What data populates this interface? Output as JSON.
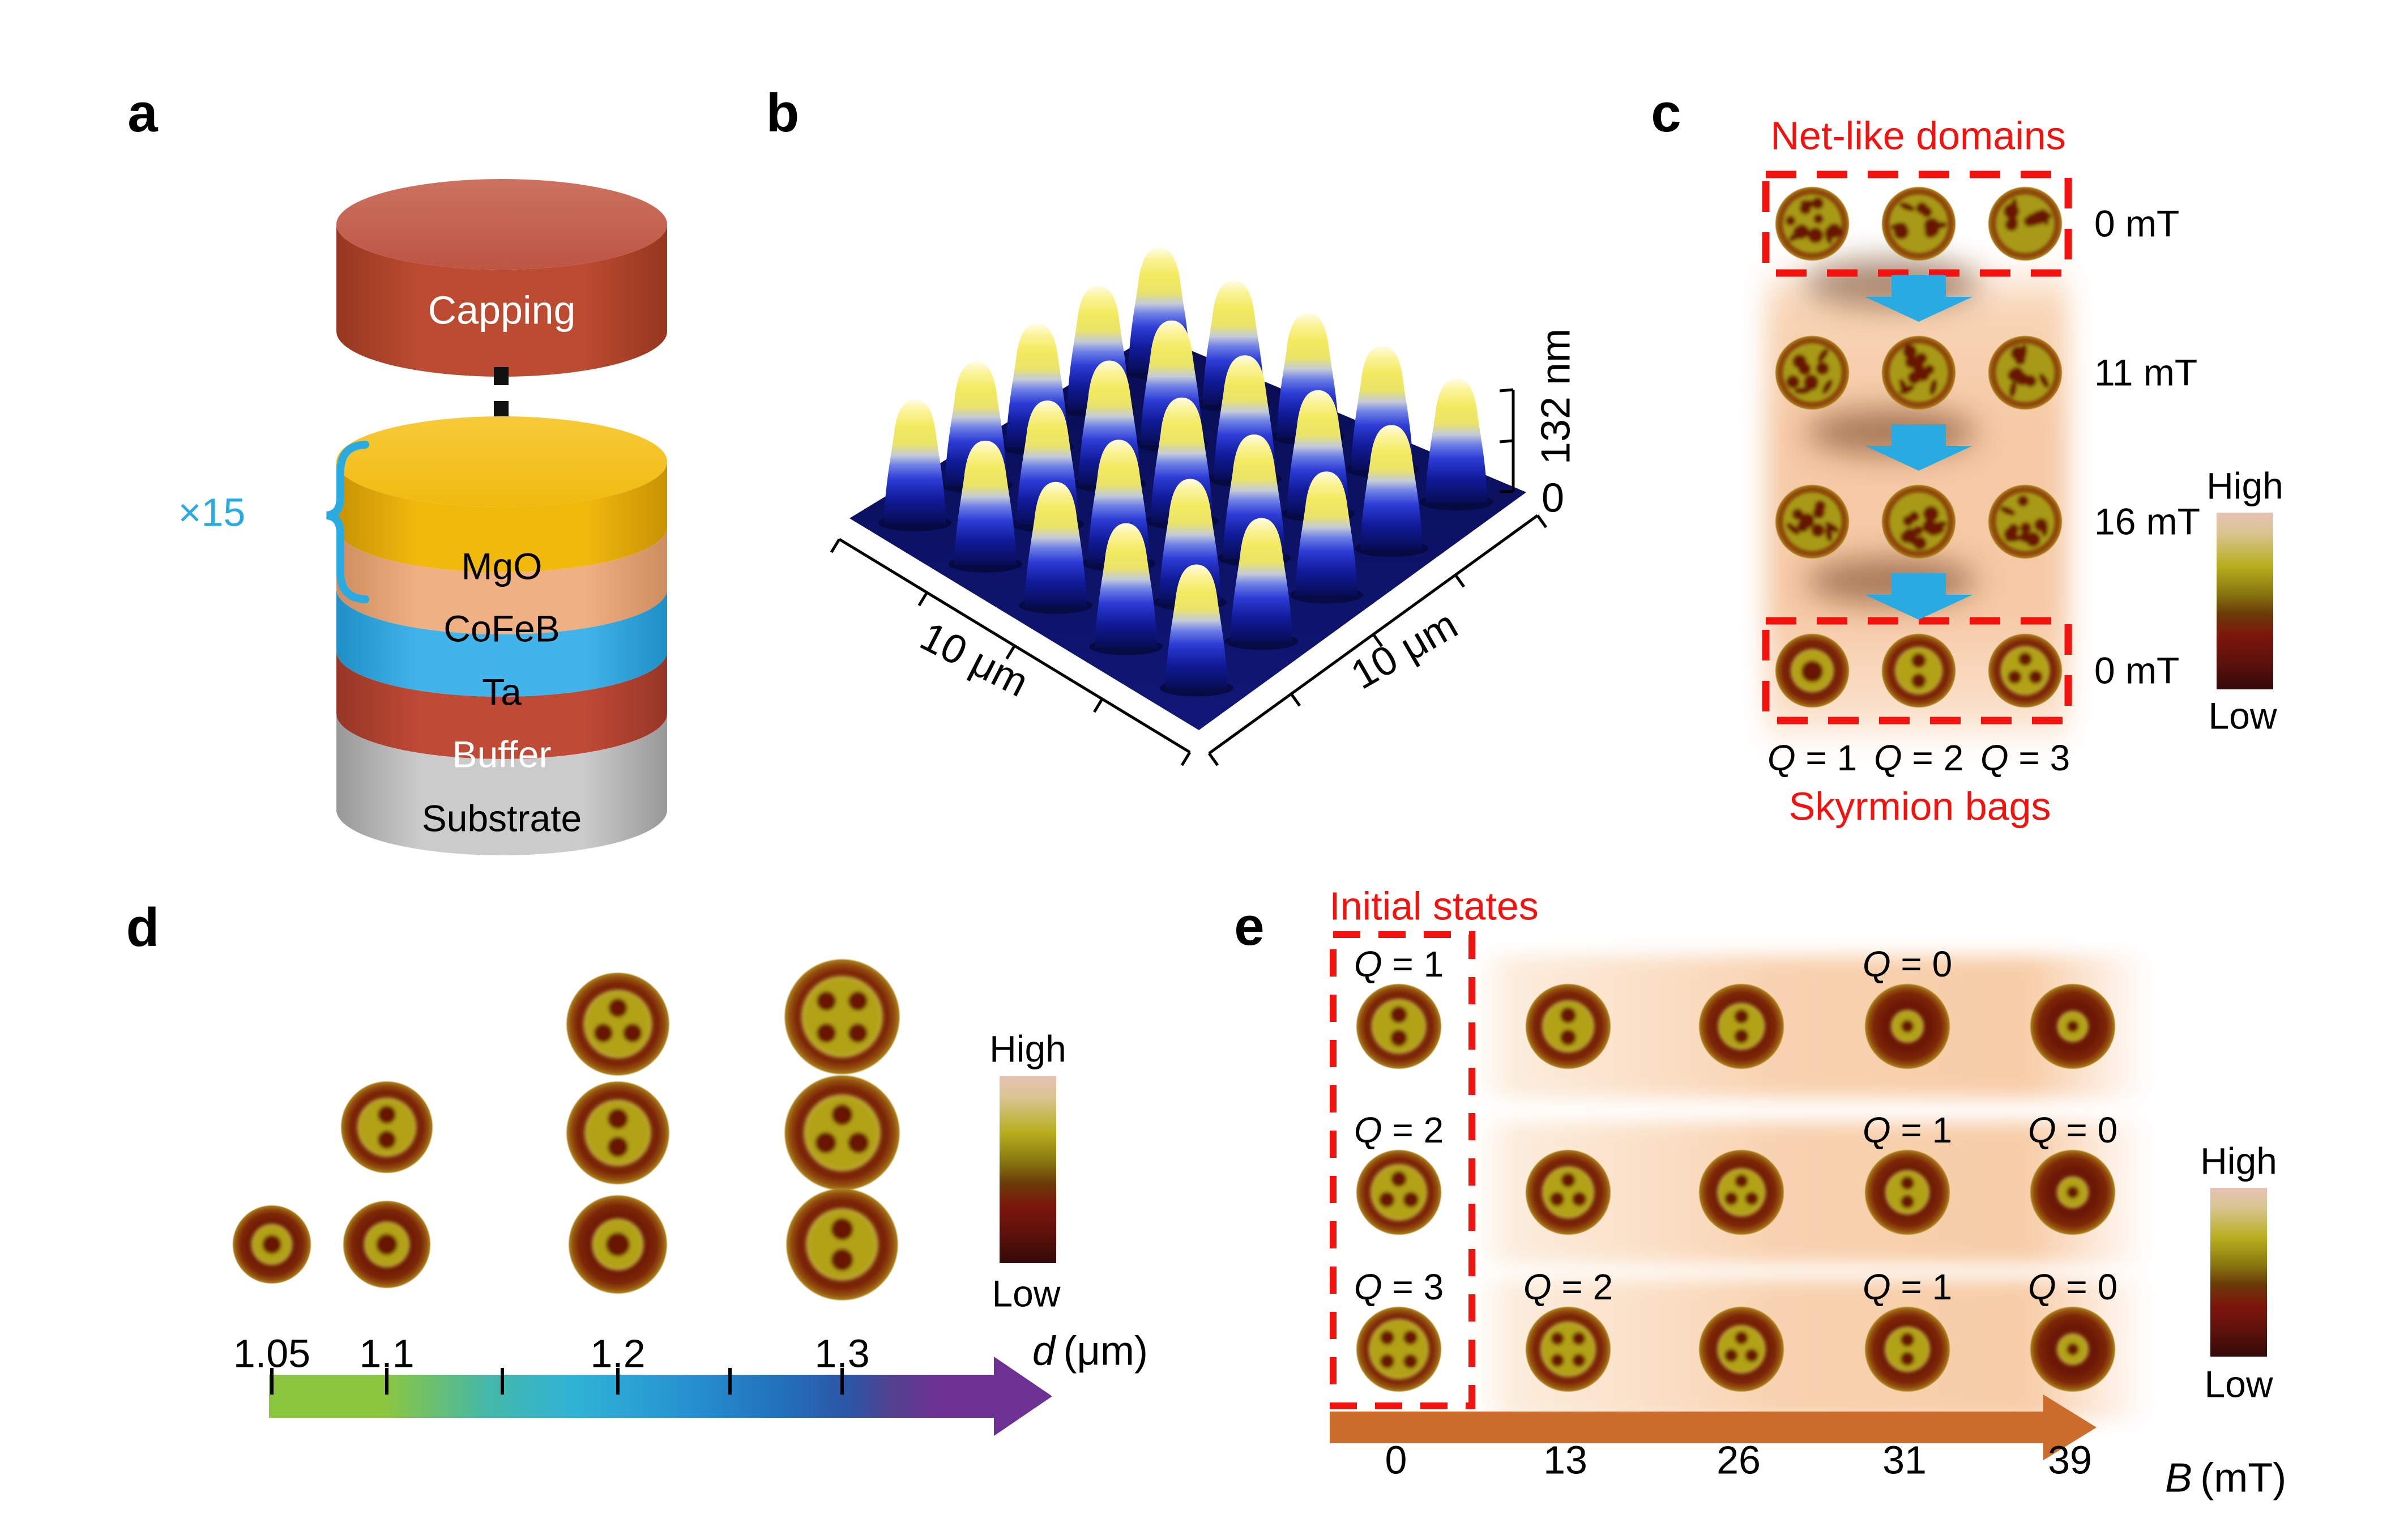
{
  "figure_title": "Multilayer skyrmion-bag figure",
  "panels": {
    "a": {
      "letter": "a",
      "capping": "Capping",
      "repeat_label": "×15",
      "layers": [
        {
          "name": "MgO",
          "color": "#f2b90d",
          "text_color": "#0a0a0a"
        },
        {
          "name": "CoFeB",
          "color": "#efb083",
          "text_color": "#0a0a0a"
        },
        {
          "name": "Ta",
          "color": "#41b4e9",
          "text_color": "#0a0a0a"
        },
        {
          "name": "Buffer",
          "color": "#bf4a36",
          "text_color": "#ffffff"
        },
        {
          "name": "Substrate",
          "color": "#c7c7c7",
          "text_color": "#0a0a0a"
        }
      ],
      "capping_color": "#b9492f"
    },
    "b": {
      "letter": "b",
      "x_label": "10 μm",
      "y_label": "10 μm",
      "z_max": "132 nm",
      "z_min": "0"
    },
    "c": {
      "letter": "c",
      "title": "Net-like domains",
      "footer": "Skyrmion bags",
      "rows": [
        {
          "field": "0 mT",
          "boxed": true,
          "disks": [
            "net",
            "net",
            "net"
          ]
        },
        {
          "field": "11 mT",
          "boxed": false,
          "disks": [
            "net",
            "net",
            "net"
          ]
        },
        {
          "field": "16 mT",
          "boxed": false,
          "disks": [
            "net",
            "net",
            "net"
          ]
        },
        {
          "field": "0 mT",
          "boxed": true,
          "disks": [
            "bag1",
            "bag2",
            "bag3"
          ]
        }
      ],
      "q_symbol": "Q",
      "q_labels": [
        "= 1",
        "= 2",
        "= 3"
      ],
      "colorbar": {
        "high": "High",
        "low": "Low"
      }
    },
    "d": {
      "letter": "d",
      "columns": [
        {
          "d": "1.05",
          "disks": [
            "ring"
          ]
        },
        {
          "d": "1.1",
          "disks": [
            "bag2",
            "ring"
          ]
        },
        {
          "d": "1.2",
          "disks": [
            "bag3",
            "bag2",
            "ring"
          ]
        },
        {
          "d": "1.3",
          "disks": [
            "bag4",
            "bag3",
            "bag2"
          ]
        }
      ],
      "axis": {
        "tick_labels": [
          "1.05",
          "1.1",
          "1.2",
          "1.3"
        ],
        "symbol": "d",
        "unit": "(μm)"
      },
      "colorbar": {
        "high": "High",
        "low": "Low"
      }
    },
    "e": {
      "letter": "e",
      "title": "Initial states",
      "q_symbol": "Q",
      "rows": [
        {
          "disks": [
            {
              "t": "bag2",
              "s": 1
            },
            {
              "t": "bag2",
              "s": 0.95
            },
            {
              "t": "bag2",
              "s": 0.85
            },
            {
              "t": "ringS",
              "s": 0.95
            },
            {
              "t": "ringS",
              "s": 0.9
            }
          ],
          "q_marks": [
            {
              "col": 0,
              "text": "= 1"
            },
            {
              "col": 3,
              "text": "= 0"
            }
          ]
        },
        {
          "disks": [
            {
              "t": "bag3",
              "s": 1
            },
            {
              "t": "bag3",
              "s": 0.92
            },
            {
              "t": "bag3",
              "s": 0.85
            },
            {
              "t": "bag2",
              "s": 0.8
            },
            {
              "t": "ringS",
              "s": 0.92
            }
          ],
          "q_marks": [
            {
              "col": 0,
              "text": "= 2"
            },
            {
              "col": 3,
              "text": "= 1"
            },
            {
              "col": 4,
              "text": "= 0"
            }
          ]
        },
        {
          "disks": [
            {
              "t": "bag4",
              "s": 1
            },
            {
              "t": "bag4",
              "s": 0.92
            },
            {
              "t": "bag3",
              "s": 0.85
            },
            {
              "t": "bag2",
              "s": 0.82
            },
            {
              "t": "ringS",
              "s": 0.92
            }
          ],
          "q_marks": [
            {
              "col": 0,
              "text": "= 3"
            },
            {
              "col": 1,
              "text": "= 2"
            },
            {
              "col": 3,
              "text": "= 1"
            },
            {
              "col": 4,
              "text": "= 0"
            }
          ]
        }
      ],
      "axis": {
        "fields": [
          "0",
          "13",
          "26",
          "31",
          "39"
        ],
        "symbol": "B",
        "unit": "(mT)"
      },
      "colorbar": {
        "high": "High",
        "low": "Low"
      }
    }
  },
  "colors": {
    "annotation_red": "#f2130f",
    "arrow_blue": "#29abe2",
    "arrow_orange": "#cd6d2d",
    "arrow_purple": "#6d3193",
    "band_peach_c": "#f6c9a6",
    "band_peach_e": "#f8d2b0"
  },
  "chart_data": [
    {
      "panel": "b",
      "type": "heatmap",
      "description": "3D AFM topography of a 5×5 circular pillar array",
      "x_range": "10 μm",
      "y_range": "10 μm",
      "z_range_nm": [
        0,
        132
      ],
      "pillar_rows": 5,
      "pillar_cols": 5
    },
    {
      "panel": "c",
      "type": "table",
      "field_sequence_mT": [
        0,
        11,
        16,
        0
      ],
      "state_sequence": [
        "net-like domains",
        "net-like domains",
        "net-like domains",
        "skyrmion bags"
      ],
      "final_Q_values": [
        1,
        2,
        3
      ]
    },
    {
      "panel": "d",
      "type": "table",
      "diameters_um": [
        1.05,
        1.1,
        1.2,
        1.3
      ],
      "stacked_states_per_diameter": [
        1,
        2,
        3,
        3
      ]
    },
    {
      "panel": "e",
      "type": "table",
      "B_mT": [
        0,
        13,
        26,
        31,
        39
      ],
      "rows": [
        {
          "initial_Q": 1,
          "Q_labels_at_B": {
            "0": 1,
            "31": 0
          }
        },
        {
          "initial_Q": 2,
          "Q_labels_at_B": {
            "0": 2,
            "31": 1,
            "39": 0
          }
        },
        {
          "initial_Q": 3,
          "Q_labels_at_B": {
            "0": 3,
            "13": 2,
            "31": 1,
            "39": 0
          }
        }
      ]
    }
  ]
}
